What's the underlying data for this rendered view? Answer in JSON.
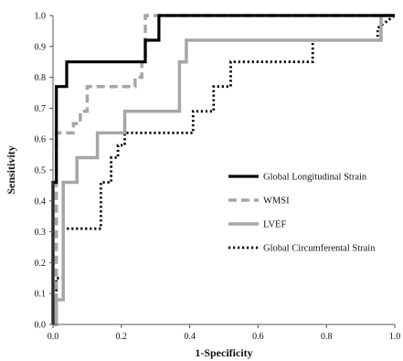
{
  "chart_data": {
    "type": "line",
    "xlabel": "1-Specificity",
    "ylabel": "Sensitivity",
    "xlim": [
      0,
      1
    ],
    "ylim": [
      0,
      1
    ],
    "x_ticks": [
      "0.0",
      "0.2",
      "0.4",
      "0.6",
      "0.8",
      "1.0"
    ],
    "y_ticks": [
      "0.0",
      "0.1",
      "0.2",
      "0.3",
      "0.4",
      "0.5",
      "0.6",
      "0.7",
      "0.8",
      "0.9",
      "1.0"
    ],
    "grid": false,
    "legend_position": "lower-right",
    "series": [
      {
        "name": "Global Longitudinal Strain",
        "color": "#000000",
        "style": "solid",
        "x": [
          0,
          0,
          0.01,
          0.01,
          0.02,
          0.02,
          0.04,
          0.04,
          0.27,
          0.27,
          0.29,
          0.29,
          0.31,
          0.31,
          1.0
        ],
        "y": [
          0,
          0.46,
          0.46,
          0.77,
          0.77,
          0.77,
          0.77,
          0.85,
          0.85,
          0.92,
          0.92,
          0.92,
          0.92,
          1.0,
          1.0
        ]
      },
      {
        "name": "WMSI",
        "color": "#a6a6a6",
        "style": "dashed",
        "x": [
          0,
          0.01,
          0.01,
          0.06,
          0.06,
          0.08,
          0.08,
          0.1,
          0.1,
          0.24,
          0.24,
          0.26,
          0.26,
          0.27,
          0.27,
          1.0
        ],
        "y": [
          0,
          0,
          0.62,
          0.62,
          0.65,
          0.65,
          0.69,
          0.69,
          0.77,
          0.77,
          0.8,
          0.8,
          0.85,
          0.85,
          1.0,
          1.0
        ]
      },
      {
        "name": "LVEF",
        "color": "#a6a6a6",
        "style": "solid",
        "x": [
          0,
          0.01,
          0.01,
          0.03,
          0.03,
          0.07,
          0.07,
          0.13,
          0.13,
          0.21,
          0.21,
          0.37,
          0.37,
          0.39,
          0.39,
          0.96,
          0.96,
          1.0
        ],
        "y": [
          0,
          0,
          0.08,
          0.08,
          0.46,
          0.46,
          0.54,
          0.54,
          0.62,
          0.62,
          0.69,
          0.69,
          0.85,
          0.85,
          0.92,
          0.92,
          1.0,
          1.0
        ]
      },
      {
        "name": "Global Circumferental Strain",
        "color": "#000000",
        "style": "dotted",
        "x": [
          0,
          0.01,
          0.01,
          0.03,
          0.03,
          0.14,
          0.14,
          0.17,
          0.17,
          0.19,
          0.19,
          0.21,
          0.21,
          0.41,
          0.41,
          0.47,
          0.47,
          0.52,
          0.52,
          0.76,
          0.76,
          0.95,
          0.95,
          1.0
        ],
        "y": [
          0,
          0,
          0.15,
          0.15,
          0.31,
          0.31,
          0.46,
          0.46,
          0.54,
          0.54,
          0.58,
          0.58,
          0.62,
          0.62,
          0.69,
          0.69,
          0.77,
          0.77,
          0.85,
          0.85,
          0.92,
          0.92,
          0.96,
          1.0
        ]
      }
    ]
  }
}
